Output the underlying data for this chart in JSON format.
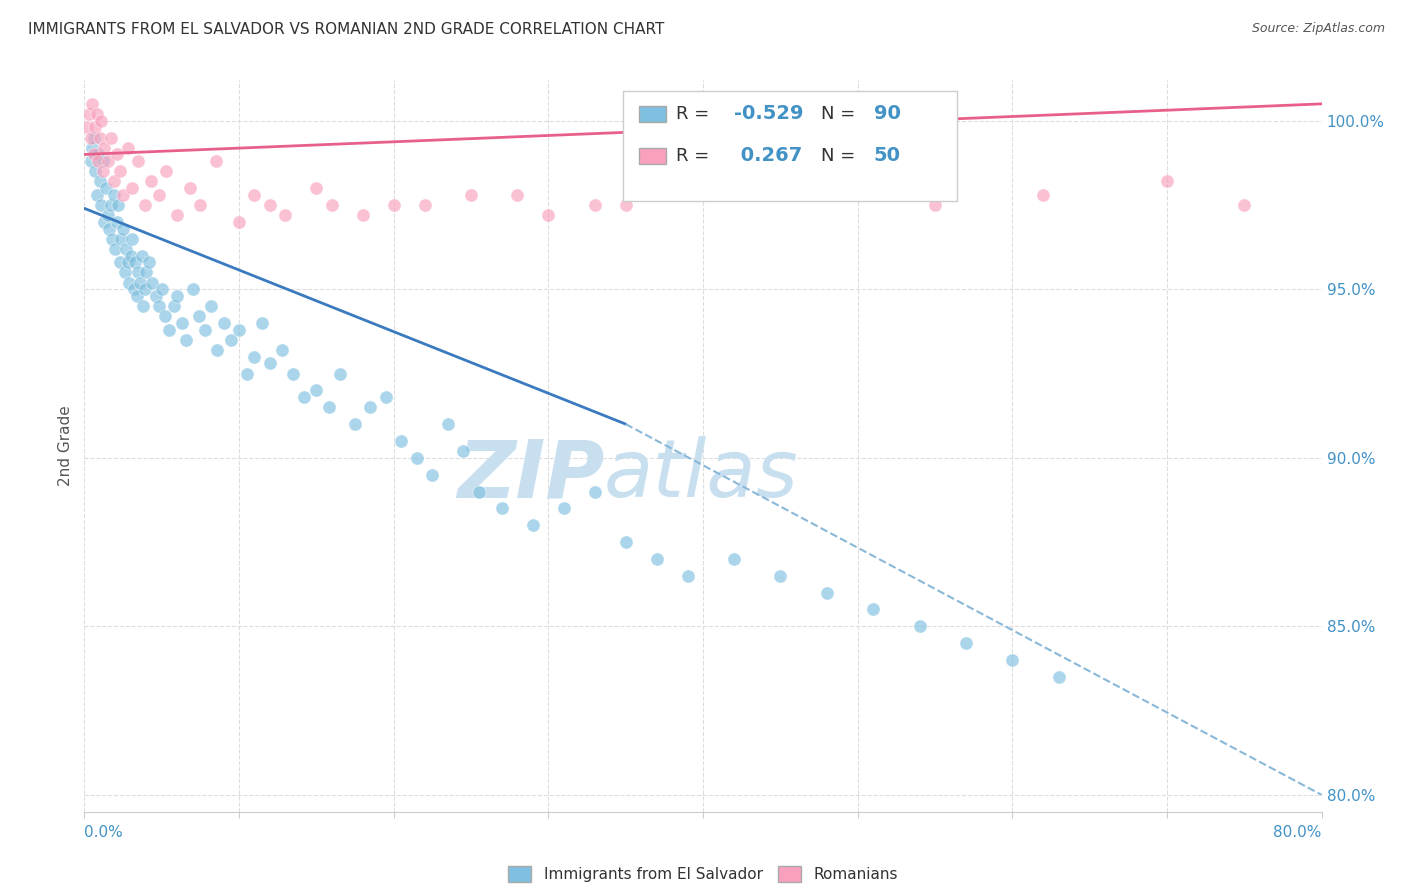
{
  "title": "IMMIGRANTS FROM EL SALVADOR VS ROMANIAN 2ND GRADE CORRELATION CHART",
  "source": "Source: ZipAtlas.com",
  "ylabel": "2nd Grade",
  "yticks": [
    80.0,
    85.0,
    90.0,
    95.0,
    100.0
  ],
  "ytick_labels": [
    "80.0%",
    "85.0%",
    "90.0%",
    "95.0%",
    "100.0%"
  ],
  "xmin": 0.0,
  "xmax": 80.0,
  "ymin": 79.5,
  "ymax": 101.2,
  "legend_r_blue": "-0.529",
  "legend_n_blue": "90",
  "legend_r_pink": "0.267",
  "legend_n_pink": "50",
  "blue_color": "#7fbfdf",
  "pink_color": "#f8a0bc",
  "blue_line_color": "#3a7abf",
  "pink_line_color": "#e8608a",
  "blue_dash_color": "#8ab8d8",
  "watermark_zip": "ZIP",
  "watermark_atlas": "atlas",
  "watermark_color": "#c8dff0",
  "background_color": "#ffffff",
  "title_fontsize": 11,
  "axis_color": "#4292c6",
  "blue_trend_x0": 0.0,
  "blue_trend_y0": 97.4,
  "blue_trend_x1": 35.0,
  "blue_trend_y1": 91.0,
  "blue_dash_x0": 35.0,
  "blue_dash_y0": 91.0,
  "blue_dash_x1": 80.0,
  "blue_dash_y1": 80.0,
  "pink_trend_x0": 0.0,
  "pink_trend_y0": 99.0,
  "pink_trend_x1": 80.0,
  "pink_trend_y1": 100.5,
  "blue_scatter_x": [
    0.4,
    0.5,
    0.6,
    0.7,
    0.8,
    0.9,
    1.0,
    1.1,
    1.2,
    1.3,
    1.4,
    1.5,
    1.6,
    1.7,
    1.8,
    1.9,
    2.0,
    2.1,
    2.2,
    2.3,
    2.4,
    2.5,
    2.6,
    2.7,
    2.8,
    2.9,
    3.0,
    3.1,
    3.2,
    3.3,
    3.4,
    3.5,
    3.6,
    3.7,
    3.8,
    3.9,
    4.0,
    4.2,
    4.4,
    4.6,
    4.8,
    5.0,
    5.2,
    5.5,
    5.8,
    6.0,
    6.3,
    6.6,
    7.0,
    7.4,
    7.8,
    8.2,
    8.6,
    9.0,
    9.5,
    10.0,
    10.5,
    11.0,
    11.5,
    12.0,
    12.8,
    13.5,
    14.2,
    15.0,
    15.8,
    16.5,
    17.5,
    18.5,
    19.5,
    20.5,
    21.5,
    22.5,
    23.5,
    24.5,
    25.5,
    27.0,
    29.0,
    31.0,
    33.0,
    35.0,
    37.0,
    39.0,
    42.0,
    45.0,
    48.0,
    51.0,
    54.0,
    57.0,
    60.0,
    63.0
  ],
  "blue_scatter_y": [
    98.8,
    99.2,
    99.5,
    98.5,
    97.8,
    99.0,
    98.2,
    97.5,
    98.8,
    97.0,
    98.0,
    97.2,
    96.8,
    97.5,
    96.5,
    97.8,
    96.2,
    97.0,
    97.5,
    95.8,
    96.5,
    96.8,
    95.5,
    96.2,
    95.8,
    95.2,
    96.0,
    96.5,
    95.0,
    95.8,
    94.8,
    95.5,
    95.2,
    96.0,
    94.5,
    95.0,
    95.5,
    95.8,
    95.2,
    94.8,
    94.5,
    95.0,
    94.2,
    93.8,
    94.5,
    94.8,
    94.0,
    93.5,
    95.0,
    94.2,
    93.8,
    94.5,
    93.2,
    94.0,
    93.5,
    93.8,
    92.5,
    93.0,
    94.0,
    92.8,
    93.2,
    92.5,
    91.8,
    92.0,
    91.5,
    92.5,
    91.0,
    91.5,
    91.8,
    90.5,
    90.0,
    89.5,
    91.0,
    90.2,
    89.0,
    88.5,
    88.0,
    88.5,
    89.0,
    87.5,
    87.0,
    86.5,
    87.0,
    86.5,
    86.0,
    85.5,
    85.0,
    84.5,
    84.0,
    83.5
  ],
  "pink_scatter_x": [
    0.2,
    0.3,
    0.4,
    0.5,
    0.6,
    0.7,
    0.8,
    0.9,
    1.0,
    1.1,
    1.2,
    1.3,
    1.5,
    1.7,
    1.9,
    2.1,
    2.3,
    2.5,
    2.8,
    3.1,
    3.5,
    3.9,
    4.3,
    4.8,
    5.3,
    6.0,
    6.8,
    7.5,
    8.5,
    10.0,
    12.0,
    15.0,
    20.0,
    25.0,
    30.0,
    35.0,
    40.0,
    48.0,
    55.0,
    62.0,
    70.0,
    75.0,
    11.0,
    13.0,
    16.0,
    18.0,
    22.0,
    28.0,
    33.0,
    45.0
  ],
  "pink_scatter_y": [
    99.8,
    100.2,
    99.5,
    100.5,
    99.0,
    99.8,
    100.2,
    98.8,
    99.5,
    100.0,
    98.5,
    99.2,
    98.8,
    99.5,
    98.2,
    99.0,
    98.5,
    97.8,
    99.2,
    98.0,
    98.8,
    97.5,
    98.2,
    97.8,
    98.5,
    97.2,
    98.0,
    97.5,
    98.8,
    97.0,
    97.5,
    98.0,
    97.5,
    97.8,
    97.2,
    97.5,
    97.8,
    98.0,
    97.5,
    97.8,
    98.2,
    97.5,
    97.8,
    97.2,
    97.5,
    97.2,
    97.5,
    97.8,
    97.5,
    97.8
  ]
}
